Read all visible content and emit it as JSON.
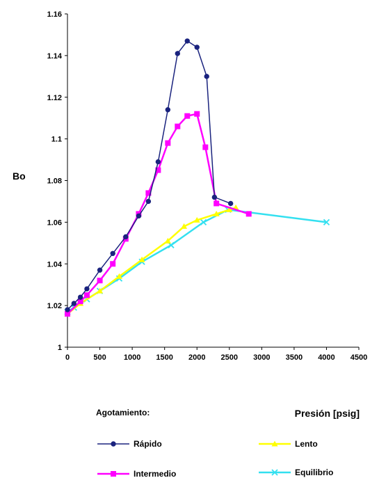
{
  "chart_data": {
    "type": "line",
    "xlabel": "Presión [psig]",
    "ylabel": "Bo",
    "xlim": [
      0,
      4500
    ],
    "ylim": [
      1,
      1.16
    ],
    "x_ticks": [
      0,
      500,
      1000,
      1500,
      2000,
      2500,
      3000,
      3500,
      4000,
      4500
    ],
    "x_tick_labels": [
      "0",
      "500",
      "1000",
      "1500",
      "2000",
      "2500",
      "3000",
      "3500",
      "4000",
      "4500"
    ],
    "y_ticks": [
      1,
      1.02,
      1.04,
      1.06,
      1.08,
      1.1,
      1.12,
      1.14,
      1.16
    ],
    "y_tick_labels": [
      "1",
      "1.02",
      "1.04",
      "1.06",
      "1.08",
      "1.1",
      "1.12",
      "1.14",
      "1.16"
    ],
    "grid": false,
    "legend_title": "Agotamiento:",
    "legend_position": "bottom",
    "series": [
      {
        "name": "Rápido",
        "color": "#1a237e",
        "marker": "circle",
        "x": [
          0,
          100,
          200,
          300,
          500,
          700,
          900,
          1100,
          1250,
          1400,
          1550,
          1700,
          1850,
          2000,
          2150,
          2270,
          2520
        ],
        "y": [
          1.018,
          1.021,
          1.024,
          1.028,
          1.037,
          1.045,
          1.053,
          1.063,
          1.07,
          1.089,
          1.114,
          1.141,
          1.147,
          1.144,
          1.13,
          1.072,
          1.069
        ]
      },
      {
        "name": "Intermedio",
        "color": "#ff00ff",
        "marker": "square",
        "x": [
          0,
          200,
          300,
          500,
          700,
          900,
          1100,
          1250,
          1400,
          1550,
          1700,
          1850,
          2000,
          2130,
          2300,
          2800
        ],
        "y": [
          1.016,
          1.022,
          1.025,
          1.032,
          1.04,
          1.052,
          1.064,
          1.074,
          1.085,
          1.098,
          1.106,
          1.111,
          1.112,
          1.096,
          1.069,
          1.064
        ]
      },
      {
        "name": "Lento",
        "color": "#ffff00",
        "marker": "triangle",
        "x": [
          0,
          200,
          500,
          800,
          1150,
          1550,
          1800,
          2000,
          2300,
          2500,
          2600
        ],
        "y": [
          1.016,
          1.021,
          1.027,
          1.034,
          1.042,
          1.051,
          1.058,
          1.061,
          1.064,
          1.066,
          1.067
        ]
      },
      {
        "name": "Equilibrio",
        "color": "#33e0f0",
        "marker": "x",
        "x": [
          0,
          100,
          300,
          500,
          800,
          1150,
          1600,
          2100,
          2480,
          4000
        ],
        "y": [
          1.017,
          1.019,
          1.023,
          1.027,
          1.033,
          1.041,
          1.049,
          1.06,
          1.066,
          1.06
        ]
      }
    ]
  }
}
